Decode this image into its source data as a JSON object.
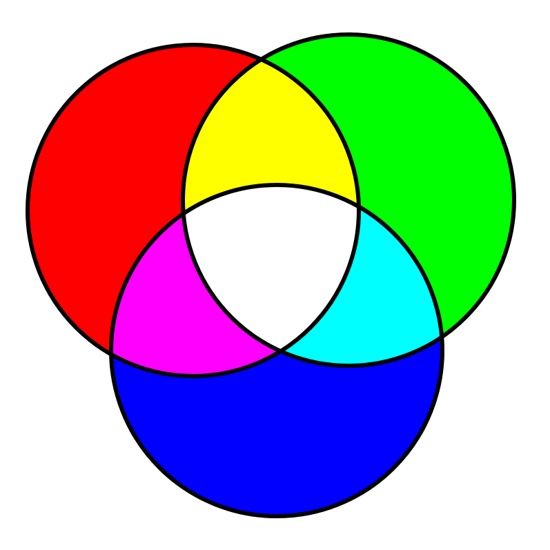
{
  "diagram": {
    "type": "venn-additive-color",
    "background": "#ffffff",
    "outline_color": "#000000",
    "regions": {
      "red": "#ff0000",
      "green": "#00ff00",
      "blue": "#0000ff",
      "yellow": "#ffff00",
      "magenta": "#ff00ff",
      "cyan": "#00ffff",
      "white": "#ffffff"
    }
  }
}
